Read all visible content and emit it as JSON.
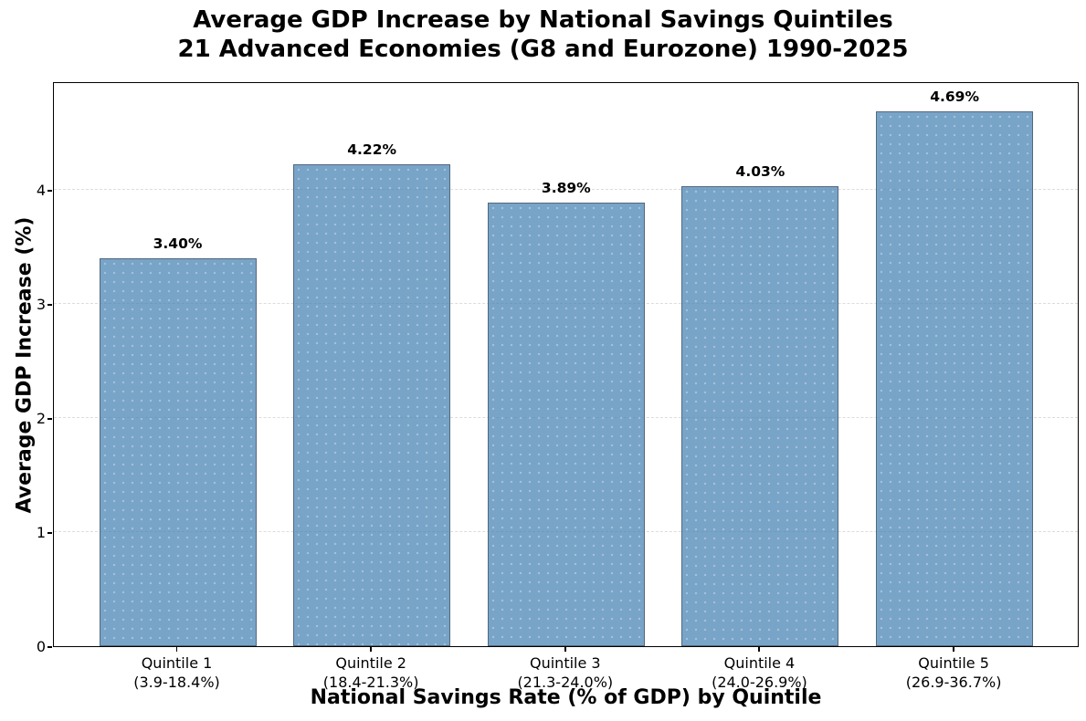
{
  "title": {
    "line1": "Average GDP Increase by National Savings Quintiles",
    "line2": "21 Advanced Economies (G8 and Eurozone) 1990-2025"
  },
  "chart_data": {
    "type": "bar",
    "title": "Average GDP Increase by National Savings Quintiles\n21 Advanced Economies (G8 and Eurozone) 1990-2025",
    "xlabel": "National Savings Rate (% of GDP) by Quintile",
    "ylabel": "Average GDP Increase (%)",
    "categories": [
      "Quintile 1",
      "Quintile 2",
      "Quintile 3",
      "Quintile 4",
      "Quintile 5"
    ],
    "category_ranges": [
      "(3.9-18.4%)",
      "(18.4-21.3%)",
      "(21.3-24.0%)",
      "(24.0-26.9%)",
      "(26.9-36.7%)"
    ],
    "values": [
      3.4,
      4.22,
      3.89,
      4.03,
      4.69
    ],
    "bar_labels": [
      "3.40%",
      "4.22%",
      "3.89%",
      "4.03%",
      "4.69%"
    ],
    "yticks": [
      0,
      1,
      2,
      3,
      4
    ],
    "ylim": [
      0,
      4.95
    ],
    "grid": "horizontal-dashed",
    "legend": "none",
    "colors": {
      "bar_fill": "rgba(70,130,180,0.73)",
      "bar_fill_hex": "#7CA6CB",
      "bar_edge": "#54687C",
      "grid_line": "#DCDCDC",
      "text": "#000000",
      "background": "#FFFFFF"
    }
  }
}
